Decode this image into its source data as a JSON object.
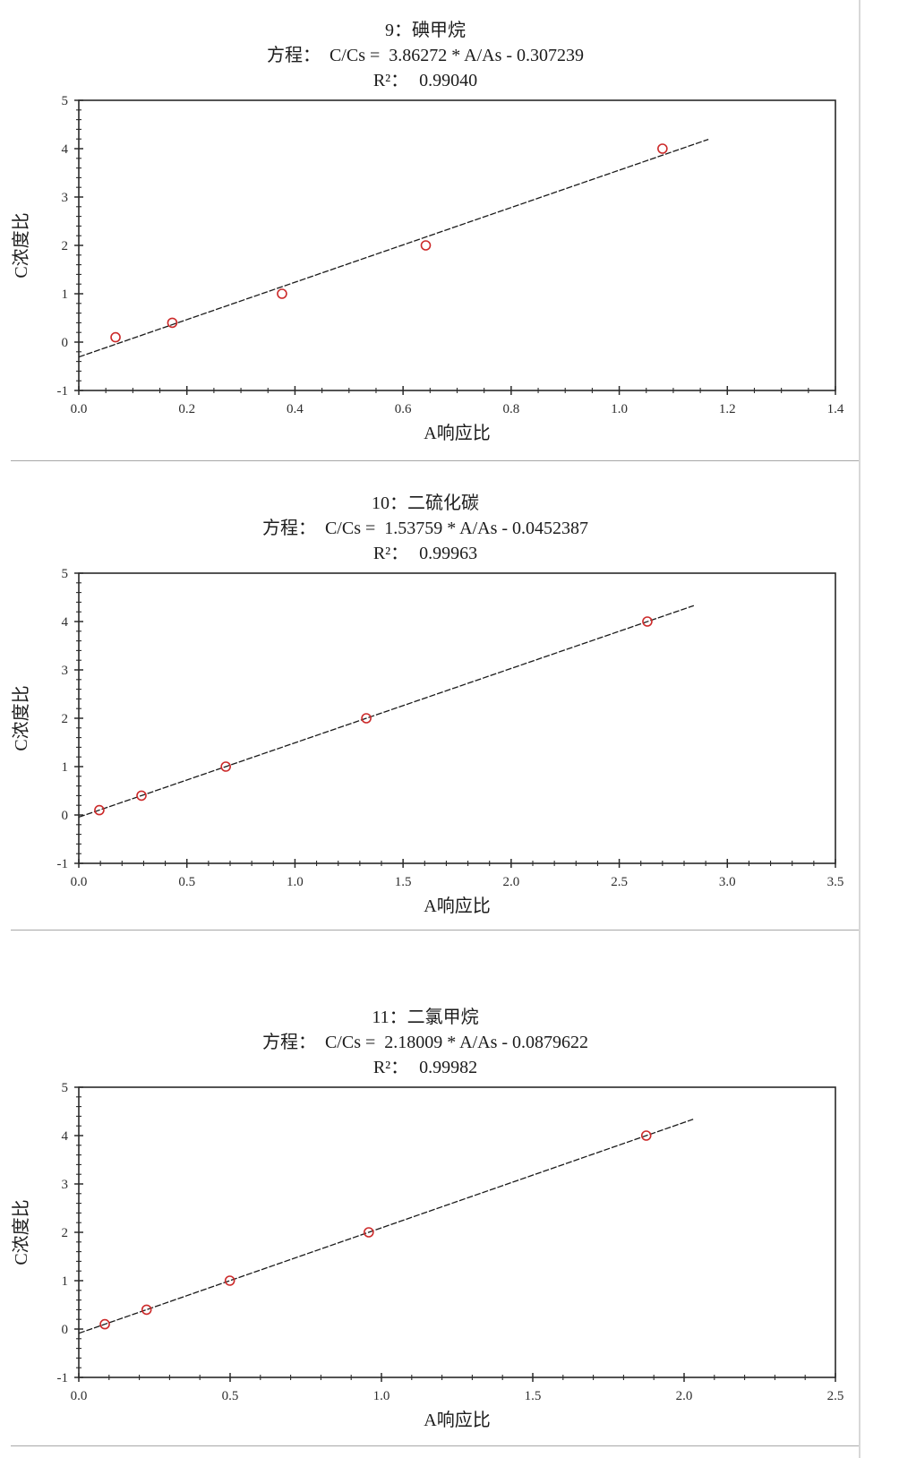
{
  "page": {
    "background": "#ffffff",
    "divider_color": "#a8a8a8",
    "right_border_color": "#d8d8d8"
  },
  "labels": {
    "equation_prefix": "方程：",
    "r2_prefix": "R²："
  },
  "chart_data": [
    {
      "type": "scatter",
      "title": "9：碘甲烷",
      "equation": "C/Cs =  3.86272 * A/As - 0.307239",
      "r_squared": "0.99040",
      "slope": 3.86272,
      "intercept": -0.307239,
      "xlabel": "A响应比",
      "ylabel": "C浓度比",
      "xlim": [
        0,
        1.4
      ],
      "ylim": [
        -1,
        5
      ],
      "x_ticks": [
        [
          0,
          "0.0"
        ],
        [
          0.2,
          "0.2"
        ],
        [
          0.4,
          "0.4"
        ],
        [
          0.6,
          "0.6"
        ],
        [
          0.8,
          "0.8"
        ],
        [
          1.0,
          "1.0"
        ],
        [
          1.2,
          "1.2"
        ],
        [
          1.4,
          "1.4"
        ]
      ],
      "y_ticks": [
        [
          -1,
          "-1"
        ],
        [
          0,
          "0"
        ],
        [
          1,
          "1"
        ],
        [
          2,
          "2"
        ],
        [
          3,
          "3"
        ],
        [
          4,
          "4"
        ],
        [
          5,
          "5"
        ]
      ],
      "x_minor_step": 0.05,
      "y_minor_step": 0.2,
      "grid": false,
      "legend": "none",
      "points": [
        [
          0.068,
          0.1
        ],
        [
          0.173,
          0.4
        ],
        [
          0.376,
          1.0
        ],
        [
          0.642,
          2.0
        ],
        [
          1.08,
          4.0
        ]
      ],
      "line_x_range": [
        0,
        1.165
      ],
      "point_color": "#cc2a2a",
      "line_color": "#1a1a1a"
    },
    {
      "type": "scatter",
      "title": "10：二硫化碳",
      "equation": "C/Cs =  1.53759 * A/As - 0.0452387",
      "r_squared": "0.99963",
      "slope": 1.53759,
      "intercept": -0.0452387,
      "xlabel": "A响应比",
      "ylabel": "C浓度比",
      "xlim": [
        0,
        3.5
      ],
      "ylim": [
        -1,
        5
      ],
      "x_ticks": [
        [
          0,
          "0.0"
        ],
        [
          0.5,
          "0.5"
        ],
        [
          1.0,
          "1.0"
        ],
        [
          1.5,
          "1.5"
        ],
        [
          2.0,
          "2.0"
        ],
        [
          2.5,
          "2.5"
        ],
        [
          3.0,
          "3.0"
        ],
        [
          3.5,
          "3.5"
        ]
      ],
      "y_ticks": [
        [
          -1,
          "-1"
        ],
        [
          0,
          "0"
        ],
        [
          1,
          "1"
        ],
        [
          2,
          "2"
        ],
        [
          3,
          "3"
        ],
        [
          4,
          "4"
        ],
        [
          5,
          "5"
        ]
      ],
      "x_minor_step": 0.1,
      "y_minor_step": 0.2,
      "grid": false,
      "legend": "none",
      "points": [
        [
          0.095,
          0.1
        ],
        [
          0.29,
          0.4
        ],
        [
          0.68,
          1.0
        ],
        [
          1.33,
          2.0
        ],
        [
          2.63,
          4.0
        ]
      ],
      "line_x_range": [
        0,
        2.845
      ],
      "point_color": "#cc2a2a",
      "line_color": "#1a1a1a"
    },
    {
      "type": "scatter",
      "title": "11：二氯甲烷",
      "equation": "C/Cs =  2.18009 * A/As - 0.0879622",
      "r_squared": "0.99982",
      "slope": 2.18009,
      "intercept": -0.0879622,
      "xlabel": "A响应比",
      "ylabel": "C浓度比",
      "xlim": [
        0,
        2.5
      ],
      "ylim": [
        -1,
        5
      ],
      "x_ticks": [
        [
          0,
          "0.0"
        ],
        [
          0.5,
          "0.5"
        ],
        [
          1.0,
          "1.0"
        ],
        [
          1.5,
          "1.5"
        ],
        [
          2.0,
          "2.0"
        ],
        [
          2.5,
          "2.5"
        ]
      ],
      "y_ticks": [
        [
          -1,
          "-1"
        ],
        [
          0,
          "0"
        ],
        [
          1,
          "1"
        ],
        [
          2,
          "2"
        ],
        [
          3,
          "3"
        ],
        [
          4,
          "4"
        ],
        [
          5,
          "5"
        ]
      ],
      "x_minor_step": 0.1,
      "y_minor_step": 0.2,
      "grid": false,
      "legend": "none",
      "points": [
        [
          0.086,
          0.1
        ],
        [
          0.224,
          0.4
        ],
        [
          0.499,
          1.0
        ],
        [
          0.958,
          2.0
        ],
        [
          1.875,
          4.0
        ]
      ],
      "line_x_range": [
        0,
        2.03
      ],
      "point_color": "#cc2a2a",
      "line_color": "#1a1a1a"
    }
  ]
}
